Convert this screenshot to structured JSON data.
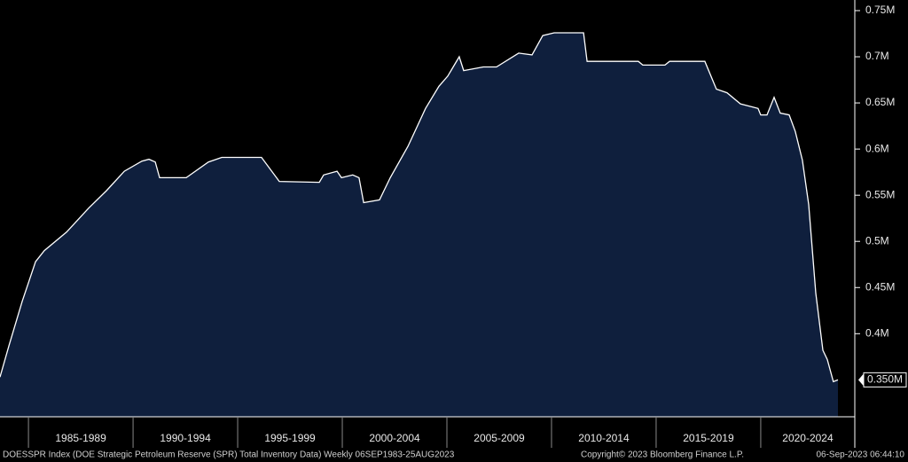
{
  "chart_data": {
    "type": "area",
    "title": "DOESSPR Index (DOE Strategic Petroleum Reserve (SPR) Total Inventory Data)  Weekly 06SEP1983-25AUG2023",
    "copyright": "Copyright© 2023 Bloomberg Finance L.P.",
    "timestamp": "06-Sep-2023 06:44:10",
    "color": "#0f1f3d",
    "line_color": "#ffffff",
    "x": [
      1983.64,
      1984.07,
      1984.7,
      1985.34,
      1985.76,
      1986.82,
      1987.88,
      1988.73,
      1989.58,
      1990.42,
      1990.76,
      1991.06,
      1991.27,
      1992.54,
      1993.6,
      1994.24,
      1996.14,
      1996.99,
      1998.9,
      1999.11,
      1999.75,
      1999.96,
      2000.5,
      2000.8,
      2001.02,
      2001.78,
      2002.29,
      2003.14,
      2003.98,
      2004.62,
      2005.04,
      2005.59,
      2005.8,
      2006.74,
      2007.37,
      2008.43,
      2009.07,
      2009.58,
      2010.13,
      2011.53,
      2011.7,
      2014.15,
      2014.36,
      2015.42,
      2015.64,
      2017.33,
      2017.88,
      2018.39,
      2019.03,
      2019.87,
      2020.0,
      2020.3,
      2020.64,
      2020.93,
      2021.36,
      2021.65,
      2021.99,
      2022.29,
      2022.63,
      2022.97,
      2023.18,
      2023.47,
      2023.69
    ],
    "values": [
      0.353,
      0.387,
      0.435,
      0.478,
      0.49,
      0.51,
      0.536,
      0.555,
      0.576,
      0.587,
      0.589,
      0.586,
      0.569,
      0.569,
      0.586,
      0.591,
      0.591,
      0.565,
      0.564,
      0.572,
      0.576,
      0.569,
      0.572,
      0.569,
      0.542,
      0.545,
      0.569,
      0.603,
      0.644,
      0.668,
      0.679,
      0.7,
      0.685,
      0.689,
      0.689,
      0.704,
      0.702,
      0.723,
      0.726,
      0.726,
      0.695,
      0.695,
      0.691,
      0.691,
      0.695,
      0.695,
      0.665,
      0.661,
      0.649,
      0.644,
      0.637,
      0.637,
      0.656,
      0.639,
      0.637,
      0.619,
      0.588,
      0.54,
      0.444,
      0.382,
      0.372,
      0.348,
      0.35
    ],
    "last_label": {
      "value": 0.35,
      "label": "0.350M"
    },
    "xlim": [
      1983.64,
      2023.69
    ],
    "xticks": [
      1985,
      1990,
      1995,
      2000,
      2005,
      2010,
      2015,
      2020
    ],
    "x_periods": [
      "1985-1989",
      "1990-1994",
      "1995-1999",
      "2000-2004",
      "2005-2009",
      "2010-2014",
      "2015-2019",
      "2020-2024"
    ],
    "ylim": [
      0.31,
      0.7615
    ],
    "yticks": [
      {
        "value": 0.4,
        "label": "0.4M"
      },
      {
        "value": 0.45,
        "label": "0.45M"
      },
      {
        "value": 0.5,
        "label": "0.5M"
      },
      {
        "value": 0.55,
        "label": "0.55M"
      },
      {
        "value": 0.6,
        "label": "0.6M"
      },
      {
        "value": 0.65,
        "label": "0.65M"
      },
      {
        "value": 0.7,
        "label": "0.7M"
      },
      {
        "value": 0.75,
        "label": "0.75M"
      }
    ]
  }
}
